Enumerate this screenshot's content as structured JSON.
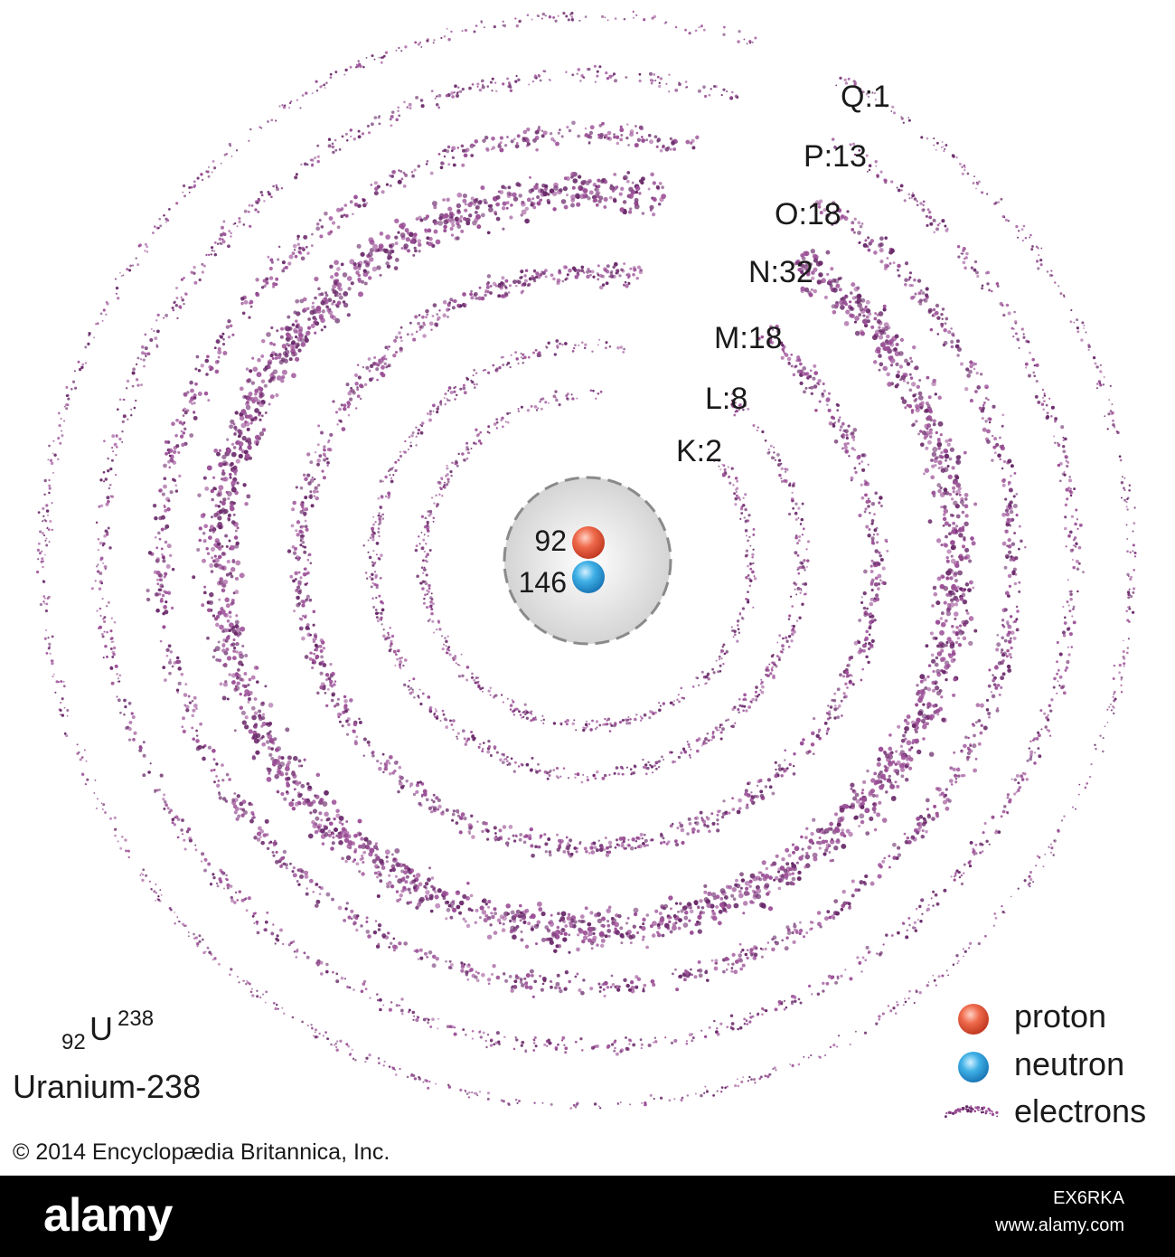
{
  "shells": [
    {
      "label": "K:2"
    },
    {
      "label": "L:8"
    },
    {
      "label": "M:18"
    },
    {
      "label": "N:32"
    },
    {
      "label": "O:18"
    },
    {
      "label": "P:13"
    },
    {
      "label": "Q:1"
    }
  ],
  "nucleus": {
    "protons": "92",
    "neutrons": "146"
  },
  "legend": {
    "proton": "proton",
    "neutron": "neutron",
    "electrons": "electrons"
  },
  "isotope": {
    "atomic_number": "92",
    "symbol": "U",
    "mass_number": "238",
    "name": "Uranium-238"
  },
  "copyright": "© 2014 Encyclopædia Britannica, Inc.",
  "footer": {
    "logo": "alamy",
    "image_id": "EX6RKA",
    "url": "www.alamy.com"
  },
  "colors": {
    "electron": "#9b4f96",
    "electron_dark": "#6a2a6a",
    "proton": "#e8533a",
    "neutron": "#2a9fd8",
    "nucleus_fill": "#e6e6e6"
  }
}
